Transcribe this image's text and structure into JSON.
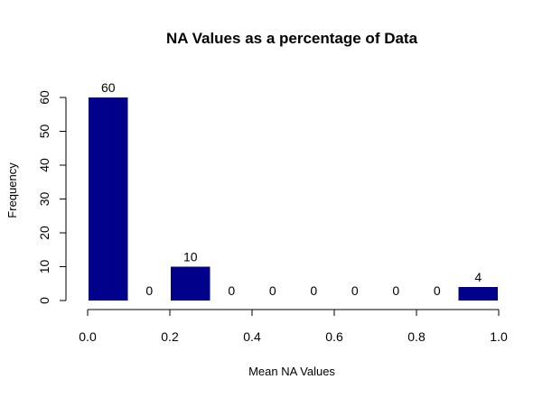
{
  "chart_data": {
    "type": "bar",
    "title": "NA Values as a percentage of Data",
    "xlabel": "Mean NA Values",
    "ylabel": "Frequency",
    "bins": [
      [
        0.0,
        0.1
      ],
      [
        0.1,
        0.2
      ],
      [
        0.2,
        0.3
      ],
      [
        0.3,
        0.4
      ],
      [
        0.4,
        0.5
      ],
      [
        0.5,
        0.6
      ],
      [
        0.6,
        0.7
      ],
      [
        0.7,
        0.8
      ],
      [
        0.8,
        0.9
      ],
      [
        0.9,
        1.0
      ]
    ],
    "values": [
      60,
      0,
      10,
      0,
      0,
      0,
      0,
      0,
      0,
      4
    ],
    "bar_labels": [
      "60",
      "0",
      "10",
      "0",
      "0",
      "0",
      "0",
      "0",
      "0",
      "4"
    ],
    "xlim": [
      0,
      1
    ],
    "ylim": [
      0,
      60
    ],
    "x_ticks": [
      0.0,
      0.2,
      0.4,
      0.6,
      0.8,
      1.0
    ],
    "x_tick_labels": [
      "0.0",
      "0.2",
      "0.4",
      "0.6",
      "0.8",
      "1.0"
    ],
    "y_ticks": [
      0,
      10,
      20,
      30,
      40,
      50,
      60
    ],
    "y_tick_labels": [
      "0",
      "10",
      "20",
      "30",
      "40",
      "50",
      "60"
    ],
    "bar_color": "#00008B",
    "grid": false,
    "legend": "none"
  }
}
